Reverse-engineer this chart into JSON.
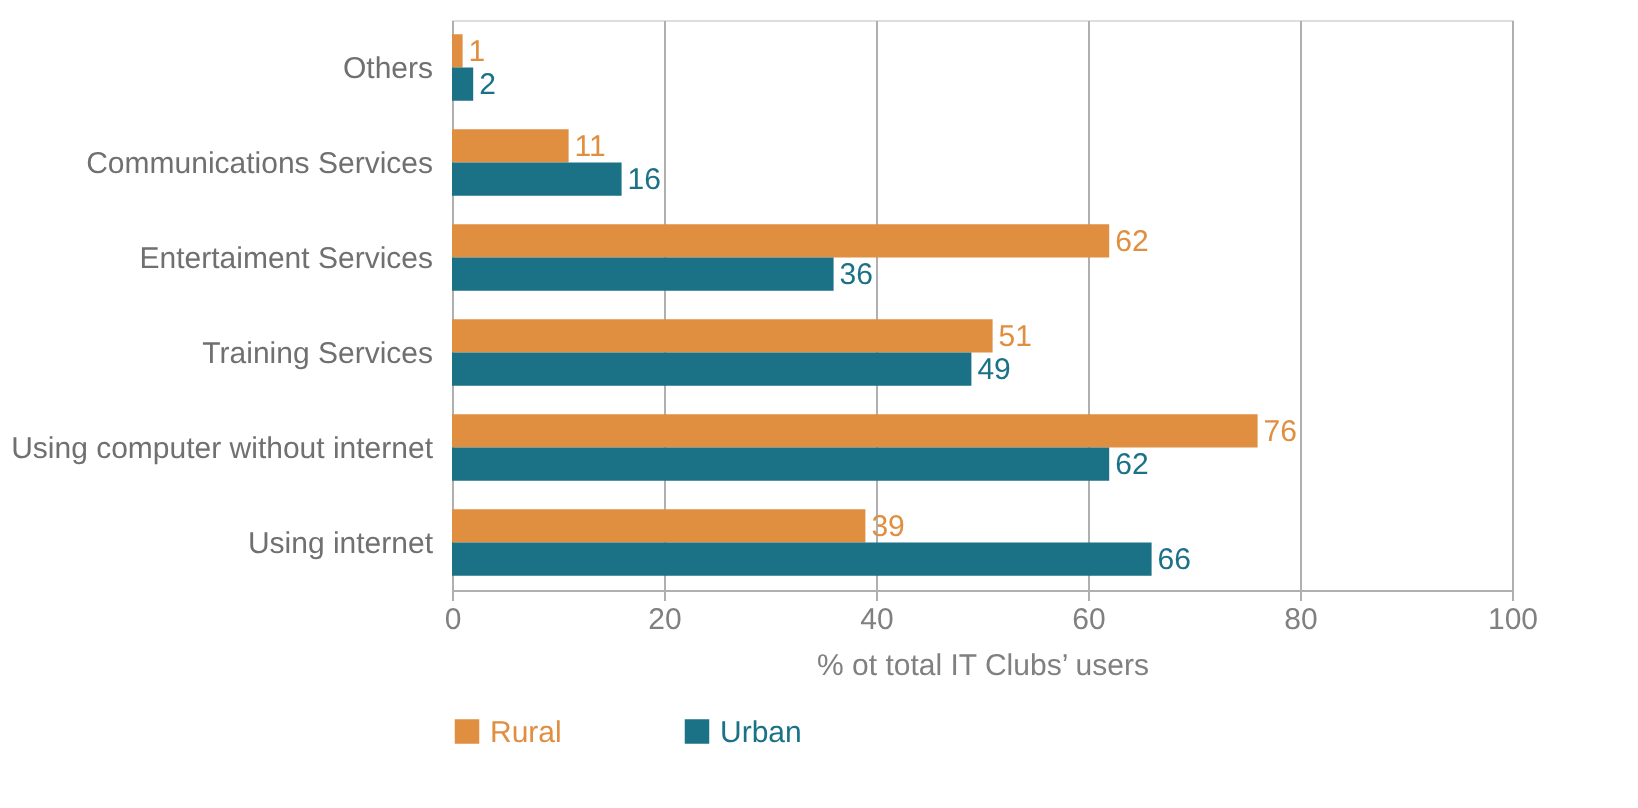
{
  "chart_data": {
    "type": "bar",
    "orientation": "horizontal",
    "xlabel": "% ot total IT Clubs’ users",
    "categories": [
      "Others",
      "Communications Services",
      "Entertaiment Services",
      "Training Services",
      "Using computer without internet",
      "Using internet"
    ],
    "series": [
      {
        "name": "Rural",
        "color": "#e08e40",
        "values": [
          1,
          11,
          62,
          51,
          76,
          39
        ]
      },
      {
        "name": "Urban",
        "color": "#1b7287",
        "values": [
          2,
          16,
          36,
          49,
          62,
          66
        ]
      }
    ],
    "xlim": [
      0,
      100
    ],
    "xticks": [
      0,
      20,
      40,
      60,
      80,
      100
    ],
    "grid": "x",
    "legend": "bottom",
    "data_labels": true
  }
}
